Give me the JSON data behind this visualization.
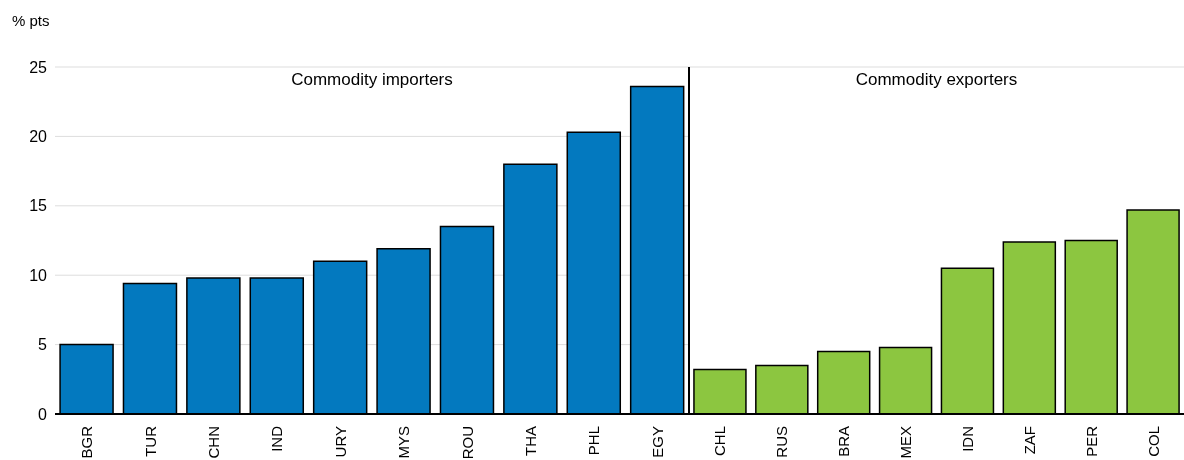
{
  "chart_data": [
    {
      "type": "bar",
      "title": "Commodity importers",
      "ylabel": "% pts",
      "categories": [
        "BGR",
        "TUR",
        "CHN",
        "IND",
        "URY",
        "MYS",
        "ROU",
        "THA",
        "PHL",
        "EGY"
      ],
      "values": [
        5.0,
        9.4,
        9.8,
        9.8,
        11.0,
        11.9,
        13.5,
        18.0,
        20.3,
        23.6
      ],
      "color": "#0379bf",
      "ylim": [
        0,
        25
      ],
      "yticks": [
        0,
        5,
        10,
        15,
        20,
        25
      ],
      "grid": "y"
    },
    {
      "type": "bar",
      "title": "Commodity exporters",
      "categories": [
        "CHL",
        "RUS",
        "BRA",
        "MEX",
        "IDN",
        "ZAF",
        "PER",
        "COL"
      ],
      "values": [
        3.2,
        3.5,
        4.5,
        4.8,
        10.5,
        12.4,
        12.5,
        14.7
      ],
      "color": "#8cc640",
      "ylim": [
        0,
        25
      ],
      "yticks": [
        0,
        5,
        10,
        15,
        20,
        25
      ],
      "grid": "y",
      "tick_labels": "x"
    }
  ]
}
